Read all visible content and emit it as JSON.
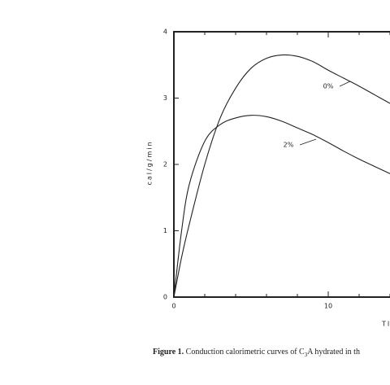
{
  "chart_data": {
    "type": "line",
    "ylabel": "cal/g/min",
    "xlabel": "TI",
    "caption_label": "Figure 1.",
    "caption_parts": [
      "Conduction calorimetric curves of C",
      "3",
      "A hydrated in th"
    ],
    "x": [
      0,
      0.5,
      1,
      2,
      3,
      4,
      5,
      6,
      7,
      8,
      9,
      10,
      11,
      12,
      13,
      14
    ],
    "series": [
      {
        "name": "0%",
        "color": "#222222",
        "values": [
          0,
          0.6,
          1.1,
          2.0,
          2.7,
          3.15,
          3.45,
          3.6,
          3.65,
          3.63,
          3.55,
          3.42,
          3.3,
          3.18,
          3.05,
          2.92
        ]
      },
      {
        "name": "2%",
        "color": "#222222",
        "values": [
          0,
          1.0,
          1.7,
          2.35,
          2.6,
          2.7,
          2.74,
          2.72,
          2.65,
          2.55,
          2.45,
          2.33,
          2.2,
          2.08,
          1.97,
          1.86
        ]
      }
    ],
    "xlim": [
      0,
      14
    ],
    "xticks": [
      0,
      10
    ],
    "xminor_ticks": [
      2,
      4,
      6,
      8,
      12,
      14
    ],
    "ylim": [
      0,
      4
    ],
    "yticks": [
      0,
      1,
      2,
      3,
      4
    ]
  }
}
